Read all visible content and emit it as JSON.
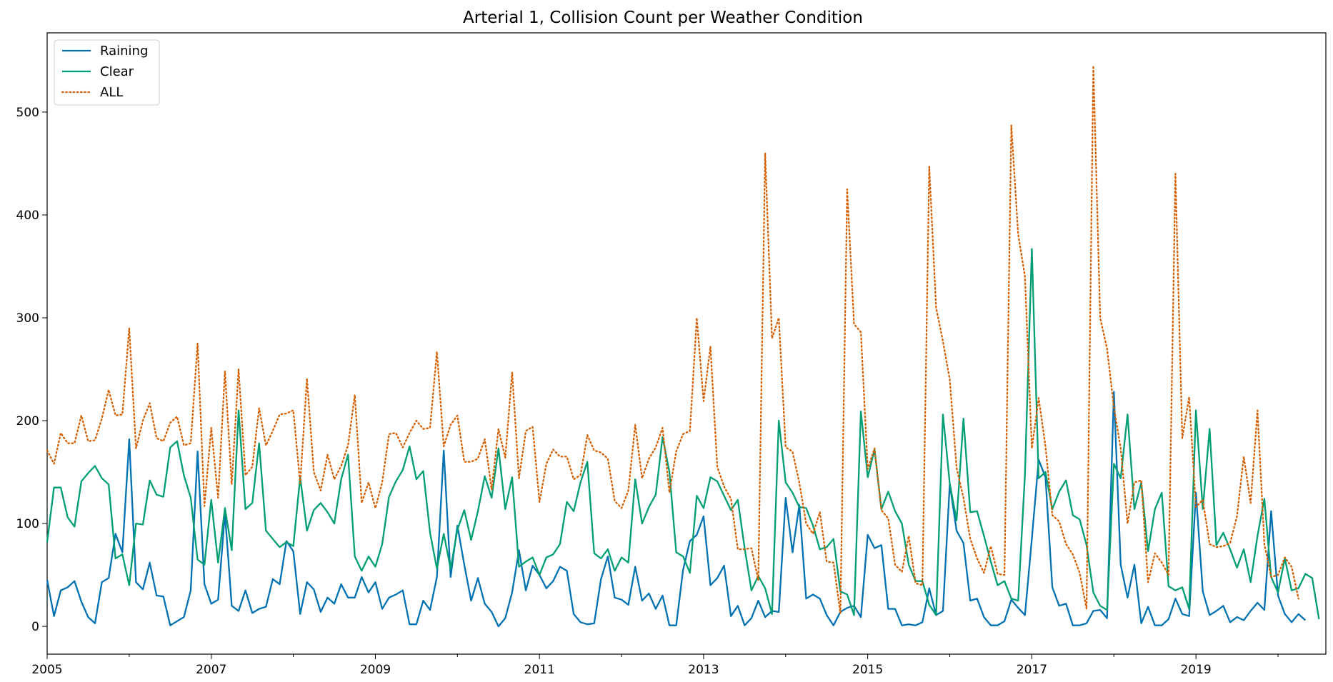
{
  "chart_data": {
    "type": "line",
    "title": "Arterial 1, Collision Count per Weather Condition",
    "xlabel": "",
    "ylabel": "",
    "x_start": "2005-01",
    "x_end": "2020-08",
    "xlim": [
      "2005-01",
      "2020-08"
    ],
    "ylim": [
      -27,
      577
    ],
    "y_ticks": [
      0,
      100,
      200,
      300,
      400,
      500
    ],
    "x_ticks": [
      {
        "date": "2005-01",
        "label": "2005"
      },
      {
        "date": "2007-01",
        "label": "2007"
      },
      {
        "date": "2009-01",
        "label": "2009"
      },
      {
        "date": "2011-01",
        "label": "2011"
      },
      {
        "date": "2013-01",
        "label": "2013"
      },
      {
        "date": "2015-01",
        "label": "2015"
      },
      {
        "date": "2017-01",
        "label": "2017"
      },
      {
        "date": "2019-01",
        "label": "2019"
      }
    ],
    "legend_position": "upper-left",
    "grid": false,
    "series": [
      {
        "name": "Raining",
        "color": "#0072B2",
        "style": "solid",
        "values": [
          45,
          10,
          35,
          38,
          44,
          24,
          9,
          3,
          43,
          47,
          90,
          72,
          182,
          43,
          36,
          62,
          30,
          29,
          1,
          5,
          9,
          35,
          170,
          41,
          22,
          26,
          110,
          20,
          15,
          35,
          13,
          17,
          19,
          46,
          41,
          83,
          73,
          12,
          43,
          36,
          14,
          28,
          22,
          41,
          28,
          28,
          48,
          33,
          43,
          17,
          28,
          31,
          35,
          2,
          2,
          25,
          16,
          48,
          171,
          48,
          98,
          60,
          25,
          47,
          22,
          14,
          0,
          8,
          33,
          74,
          35,
          59,
          50,
          37,
          44,
          58,
          54,
          12,
          4,
          2,
          3,
          46,
          68,
          28,
          26,
          21,
          58,
          25,
          32,
          17,
          30,
          1,
          1,
          55,
          83,
          89,
          107,
          40,
          47,
          59,
          10,
          20,
          1,
          8,
          25,
          9,
          15,
          14,
          125,
          72,
          118,
          27,
          31,
          27,
          11,
          1,
          14,
          18,
          20,
          9,
          89,
          76,
          79,
          17,
          17,
          1,
          2,
          1,
          4,
          37,
          11,
          15,
          138,
          93,
          81,
          25,
          27,
          9,
          1,
          1,
          5,
          26,
          18,
          11,
          85,
          162,
          145,
          38,
          20,
          22,
          1,
          1,
          3,
          15,
          16,
          8,
          228,
          60,
          28,
          60,
          3,
          19,
          1,
          1,
          7,
          27,
          12,
          10,
          130,
          34,
          11,
          15,
          20,
          4,
          9,
          6,
          15,
          23,
          16,
          112,
          30,
          12,
          4,
          12,
          6
        ]
      },
      {
        "name": "Clear",
        "color": "#009E73",
        "style": "solid",
        "values": [
          82,
          135,
          135,
          106,
          97,
          141,
          149,
          156,
          144,
          138,
          66,
          70,
          40,
          100,
          99,
          142,
          128,
          126,
          174,
          180,
          147,
          125,
          65,
          60,
          123,
          62,
          115,
          74,
          210,
          114,
          120,
          178,
          93,
          85,
          77,
          82,
          78,
          145,
          93,
          113,
          120,
          111,
          100,
          143,
          167,
          68,
          54,
          68,
          58,
          80,
          126,
          141,
          152,
          175,
          143,
          151,
          91,
          56,
          90,
          56,
          94,
          113,
          84,
          112,
          146,
          125,
          173,
          114,
          145,
          58,
          63,
          67,
          50,
          67,
          70,
          80,
          121,
          112,
          140,
          160,
          71,
          66,
          75,
          54,
          67,
          62,
          143,
          100,
          116,
          128,
          184,
          150,
          72,
          68,
          52,
          127,
          115,
          145,
          141,
          127,
          113,
          123,
          76,
          35,
          49,
          37,
          12,
          200,
          140,
          130,
          116,
          115,
          98,
          75,
          77,
          85,
          34,
          31,
          11,
          209,
          145,
          172,
          114,
          131,
          112,
          100,
          60,
          44,
          44,
          21,
          11,
          206,
          139,
          103,
          202,
          111,
          112,
          88,
          63,
          40,
          44,
          27,
          25,
          148,
          367,
          144,
          150,
          114,
          131,
          142,
          108,
          104,
          79,
          33,
          20,
          16,
          158,
          144,
          206,
          114,
          140,
          73,
          114,
          130,
          39,
          35,
          38,
          17,
          210,
          114,
          192,
          79,
          91,
          75,
          57,
          75,
          43,
          88,
          124,
          48,
          33,
          66,
          35,
          37,
          51,
          47,
          7
        ]
      },
      {
        "name": "ALL",
        "color": "#D55E00",
        "style": "dotted",
        "values": [
          171,
          158,
          188,
          178,
          178,
          205,
          180,
          181,
          202,
          230,
          205,
          206,
          290,
          173,
          200,
          217,
          183,
          180,
          198,
          204,
          176,
          178,
          275,
          117,
          193,
          125,
          248,
          138,
          250,
          147,
          155,
          212,
          176,
          190,
          206,
          207,
          210,
          139,
          241,
          150,
          132,
          167,
          143,
          156,
          176,
          225,
          120,
          140,
          115,
          140,
          187,
          188,
          174,
          188,
          200,
          192,
          193,
          267,
          175,
          196,
          205,
          160,
          160,
          163,
          182,
          133,
          192,
          164,
          247,
          144,
          190,
          194,
          121,
          158,
          172,
          165,
          165,
          143,
          147,
          186,
          171,
          169,
          163,
          122,
          115,
          132,
          196,
          144,
          163,
          174,
          193,
          130,
          170,
          187,
          190,
          300,
          219,
          272,
          155,
          136,
          124,
          75,
          75,
          76,
          45,
          460,
          280,
          300,
          174,
          170,
          140,
          100,
          90,
          111,
          63,
          62,
          13,
          425,
          294,
          286,
          153,
          173,
          113,
          105,
          60,
          53,
          88,
          42,
          40,
          447,
          310,
          277,
          240,
          154,
          125,
          85,
          66,
          52,
          78,
          51,
          50,
          487,
          381,
          340,
          173,
          222,
          175,
          108,
          102,
          80,
          70,
          52,
          17,
          545,
          300,
          270,
          213,
          173,
          100,
          140,
          142,
          43,
          71,
          62,
          50,
          440,
          183,
          223,
          116,
          123,
          80,
          77,
          78,
          81,
          107,
          165,
          120,
          210,
          80,
          48,
          50,
          67,
          58,
          27
        ]
      }
    ]
  }
}
